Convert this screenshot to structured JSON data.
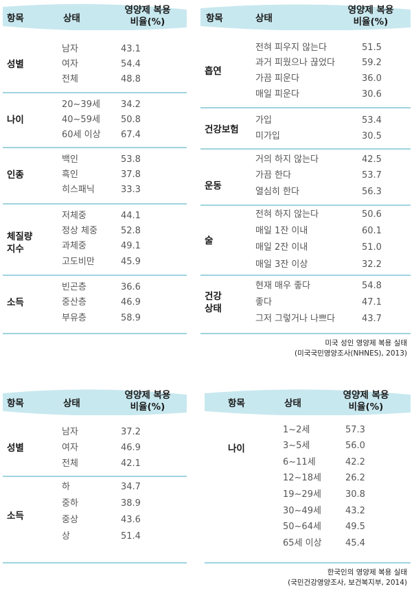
{
  "colors": {
    "header_band": "#c8e8ef",
    "separator": "#9fd3df"
  },
  "us": {
    "header": {
      "item": "항목",
      "status": "상태",
      "rate_line1": "영양제 복용",
      "rate_line2": "비율(%)"
    },
    "left": [
      {
        "category": "성별",
        "rows": [
          {
            "label": "남자",
            "value": "43.1"
          },
          {
            "label": "여자",
            "value": "54.4"
          },
          {
            "label": "전체",
            "value": "48.8"
          }
        ]
      },
      {
        "category": "나이",
        "rows": [
          {
            "label": "20~39세",
            "value": "34.2"
          },
          {
            "label": "40~59세",
            "value": "50.8"
          },
          {
            "label": "60세 이상",
            "value": "67.4"
          }
        ]
      },
      {
        "category": "인종",
        "rows": [
          {
            "label": "백인",
            "value": "53.8"
          },
          {
            "label": "흑인",
            "value": "37.8"
          },
          {
            "label": "히스패닉",
            "value": "33.3"
          }
        ]
      },
      {
        "category": "체질량\n지수",
        "rows": [
          {
            "label": "저체중",
            "value": "44.1"
          },
          {
            "label": "정상 체중",
            "value": "52.8"
          },
          {
            "label": "과체중",
            "value": "49.1"
          },
          {
            "label": "고도비만",
            "value": "45.9"
          }
        ]
      },
      {
        "category": "소득",
        "rows": [
          {
            "label": "빈곤층",
            "value": "36.6"
          },
          {
            "label": "중산층",
            "value": "46.9"
          },
          {
            "label": "부유층",
            "value": "58.9"
          }
        ]
      }
    ],
    "right": [
      {
        "category": "흡연",
        "rows": [
          {
            "label": "전혀 피우지 않는다",
            "value": "51.5"
          },
          {
            "label": "과거 피웠으나 끊었다",
            "value": "59.2"
          },
          {
            "label": "가끔 피운다",
            "value": "36.0"
          },
          {
            "label": "매일 피운다",
            "value": "30.6"
          }
        ]
      },
      {
        "category": "건강보험",
        "rows": [
          {
            "label": "가입",
            "value": "53.4"
          },
          {
            "label": "미가입",
            "value": "30.5"
          }
        ]
      },
      {
        "category": "운동",
        "rows": [
          {
            "label": "거의 하지 않는다",
            "value": "42.5"
          },
          {
            "label": "가끔 한다",
            "value": "53.7"
          },
          {
            "label": "열심히 한다",
            "value": "56.3"
          }
        ]
      },
      {
        "category": "술",
        "rows": [
          {
            "label": "전혀 하지 않는다",
            "value": "50.6"
          },
          {
            "label": "매일 1잔 이내",
            "value": "60.1"
          },
          {
            "label": "매일 2잔 이내",
            "value": "51.0"
          },
          {
            "label": "매일 3잔 이상",
            "value": "32.2"
          }
        ]
      },
      {
        "category": "건강\n상태",
        "rows": [
          {
            "label": "현재 매우 좋다",
            "value": "54.8"
          },
          {
            "label": "좋다",
            "value": "47.1"
          },
          {
            "label": "그저 그렇거나 나쁘다",
            "value": "43.7"
          }
        ]
      }
    ],
    "source_line1": "미국 성인 영양제 복용 실태",
    "source_line2": "(미국국민영양조사(NHNES), 2013)"
  },
  "kr": {
    "header": {
      "item": "항목",
      "status": "상태",
      "rate_line1": "영양제 복용",
      "rate_line2": "비율(%)"
    },
    "left": [
      {
        "category": "성별",
        "rows": [
          {
            "label": "남자",
            "value": "37.2"
          },
          {
            "label": "여자",
            "value": "46.9"
          },
          {
            "label": "전체",
            "value": "42.1"
          }
        ]
      },
      {
        "category": "소득",
        "rows": [
          {
            "label": "하",
            "value": "34.7"
          },
          {
            "label": "중하",
            "value": "38.9"
          },
          {
            "label": "중상",
            "value": "43.6"
          },
          {
            "label": "상",
            "value": "51.4"
          }
        ]
      }
    ],
    "right": [
      {
        "category": "나이",
        "rows": [
          {
            "label": "1~2세",
            "value": "57.3"
          },
          {
            "label": "3~5세",
            "value": "56.0"
          },
          {
            "label": "6~11세",
            "value": "42.2"
          },
          {
            "label": "12~18세",
            "value": "26.2"
          },
          {
            "label": "19~29세",
            "value": "30.8"
          },
          {
            "label": "30~49세",
            "value": "43.2"
          },
          {
            "label": "50~64세",
            "value": "49.5"
          },
          {
            "label": "65세 이상",
            "value": "45.4"
          }
        ]
      }
    ],
    "source_line1": "한국인의 영양제 복용 실태",
    "source_line2": "(국민건강영양조사, 보건복지부, 2014)"
  }
}
